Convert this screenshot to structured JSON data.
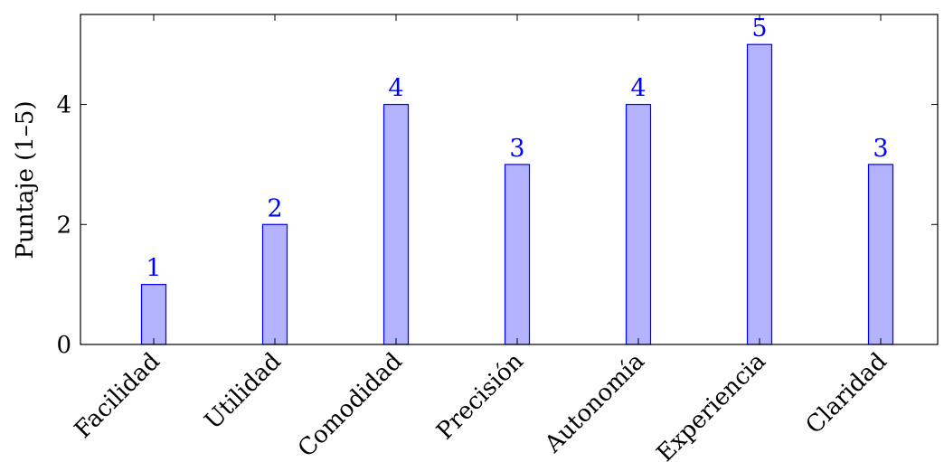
{
  "chart_data": {
    "type": "bar",
    "categories": [
      "Facilidad",
      "Utilidad",
      "Comodidad",
      "Precisión",
      "Autonomía",
      "Experiencia",
      "Claridad"
    ],
    "values": [
      1,
      2,
      4,
      3,
      4,
      5,
      3
    ],
    "data_labels": [
      "1",
      "2",
      "4",
      "3",
      "4",
      "5",
      "3"
    ],
    "title": "",
    "xlabel": "",
    "ylabel": "Puntaje (1–5)",
    "ylim": [
      0,
      5.5
    ],
    "yticks": [
      0,
      2,
      4
    ],
    "ytick_labels": [
      "0",
      "2",
      "4"
    ],
    "grid": false,
    "legend": "none",
    "colors": {
      "bar_fill": "#b3b3ff",
      "bar_stroke": "#0000ff",
      "label": "#0000ff",
      "axis": "#000000"
    }
  }
}
